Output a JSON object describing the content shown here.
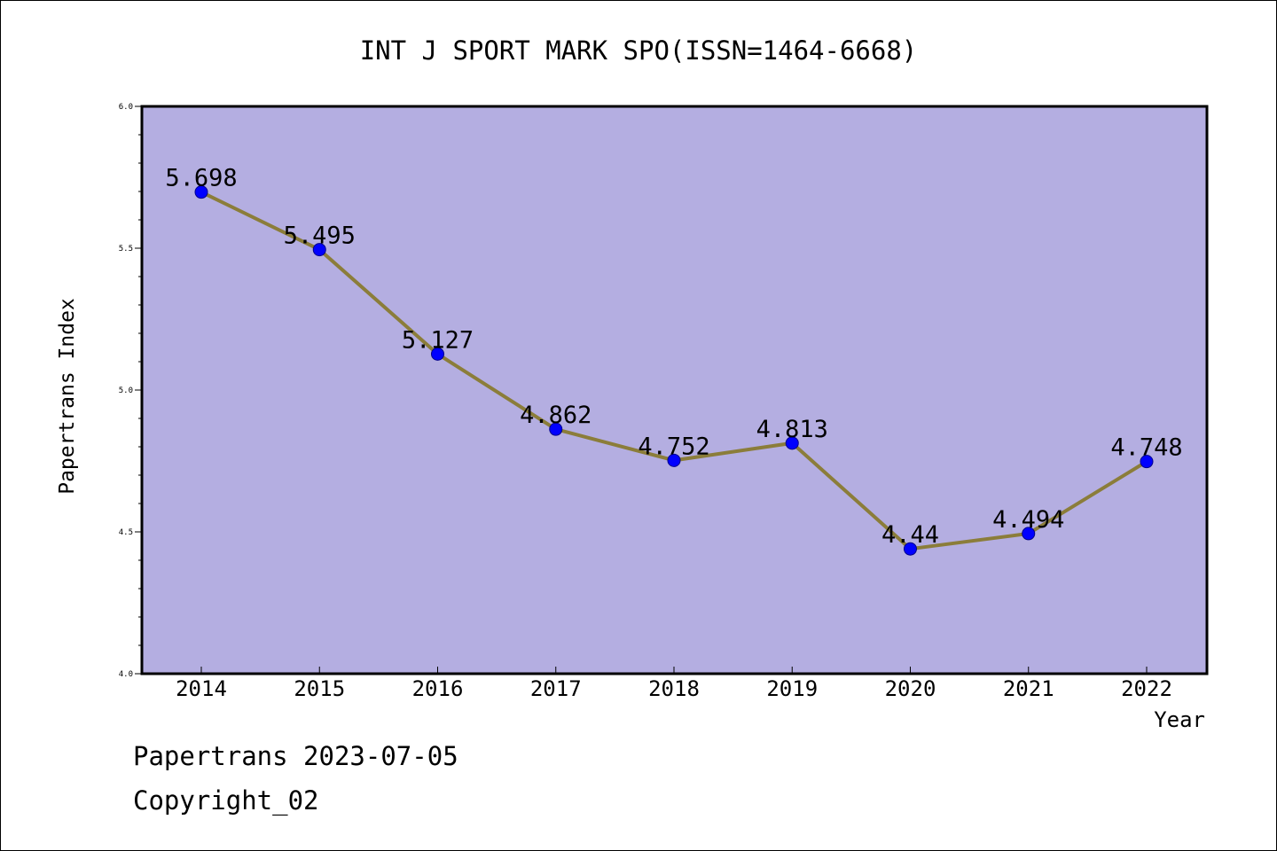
{
  "colors": {
    "plot_background": "#b4aee1",
    "line": "#8b7d3a",
    "marker_fill": "#0000ff",
    "marker_stroke": "#00008b",
    "axis": "#000000",
    "text": "#000000"
  },
  "chart_data": {
    "type": "line",
    "title": "INT J SPORT MARK SPO(ISSN=1464-6668)",
    "xlabel": "Year",
    "ylabel": "Papertrans Index",
    "categories": [
      "2014",
      "2015",
      "2016",
      "2017",
      "2018",
      "2019",
      "2020",
      "2021",
      "2022"
    ],
    "series": [
      {
        "values": [
          5.698,
          5.495,
          5.127,
          4.862,
          4.752,
          4.813,
          4.44,
          4.494,
          4.748
        ],
        "data_labels": [
          "5.698",
          "5.495",
          "5.127",
          "4.862",
          "4.752",
          "4.813",
          "4.44",
          "4.494",
          "4.748"
        ]
      }
    ],
    "ylim": [
      4.0,
      6.0
    ],
    "yticks": [
      "4.0",
      "4.5",
      "5.0",
      "5.5",
      "6.0"
    ],
    "grid": false,
    "legend": "none"
  },
  "footer": {
    "source_line": "Papertrans 2023-07-05",
    "copyright_line": "Copyright_02"
  }
}
